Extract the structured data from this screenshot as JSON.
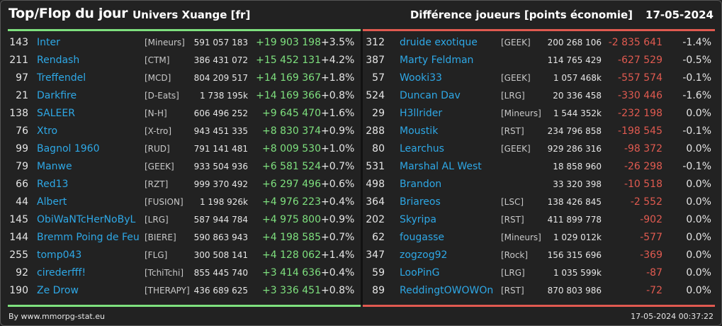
{
  "header": {
    "title": "Top/Flop du jour",
    "subtitle": "Univers Xuange [fr]",
    "metric_label": "Différence joueurs [points économie]",
    "date": "17-05-2024"
  },
  "top": [
    {
      "rank": "143",
      "name": "Inter",
      "guild": "[Mineurs]",
      "points": "591 057 183",
      "diff": "+19 903 198",
      "pct": "+3.5%"
    },
    {
      "rank": "211",
      "name": "Rendash",
      "guild": "[CTM]",
      "points": "386 431 072",
      "diff": "+15 452 131",
      "pct": "+4.2%"
    },
    {
      "rank": "97",
      "name": "Treffendel",
      "guild": "[MCD]",
      "points": "804 209 517",
      "diff": "+14 169 367",
      "pct": "+1.8%"
    },
    {
      "rank": "21",
      "name": "Darkfire",
      "guild": "[D-Eats]",
      "points": "1 738 195k",
      "diff": "+14 169 366",
      "pct": "+0.8%"
    },
    {
      "rank": "138",
      "name": "SALEER",
      "guild": "[N-H]",
      "points": "606 496 252",
      "diff": "+9 645 470",
      "pct": "+1.6%"
    },
    {
      "rank": "76",
      "name": "Xtro",
      "guild": "[X-tro]",
      "points": "943 451 335",
      "diff": "+8 830 374",
      "pct": "+0.9%"
    },
    {
      "rank": "99",
      "name": "Bagnol 1960",
      "guild": "[RUD]",
      "points": "791 141 481",
      "diff": "+8 009 530",
      "pct": "+1.0%"
    },
    {
      "rank": "79",
      "name": "Manwe",
      "guild": "[GEEK]",
      "points": "933 504 936",
      "diff": "+6 581 524",
      "pct": "+0.7%"
    },
    {
      "rank": "66",
      "name": "Red13",
      "guild": "[RZT]",
      "points": "999 370 492",
      "diff": "+6 297 496",
      "pct": "+0.6%"
    },
    {
      "rank": "44",
      "name": "Albert",
      "guild": "[FUSION]",
      "points": "1 198 926k",
      "diff": "+4 976 223",
      "pct": "+0.4%"
    },
    {
      "rank": "145",
      "name": "ObiWaNTcHerNoByL",
      "guild": "[LRG]",
      "points": "587 944 784",
      "diff": "+4 975 800",
      "pct": "+0.9%"
    },
    {
      "rank": "144",
      "name": "Bremm Poing de Feu",
      "guild": "[BIERE]",
      "points": "590 863 943",
      "diff": "+4 198 585",
      "pct": "+0.7%"
    },
    {
      "rank": "255",
      "name": "tomp043",
      "guild": "[FLG]",
      "points": "300 508 141",
      "diff": "+4 128 062",
      "pct": "+1.4%"
    },
    {
      "rank": "92",
      "name": "cirederfff!",
      "guild": "[TchiTchi]",
      "points": "855 445 740",
      "diff": "+3 414 636",
      "pct": "+0.4%"
    },
    {
      "rank": "190",
      "name": "Ze Drow",
      "guild": "[THERAPY]",
      "points": "436 689 625",
      "diff": "+3 336 451",
      "pct": "+0.8%"
    }
  ],
  "flop": [
    {
      "rank": "312",
      "name": "druide exotique",
      "guild": "[GEEK]",
      "points": "200 268 106",
      "diff": "-2 835 641",
      "pct": "-1.4%"
    },
    {
      "rank": "387",
      "name": "Marty Feldman",
      "guild": "",
      "points": "114 765 429",
      "diff": "-627 529",
      "pct": "-0.5%"
    },
    {
      "rank": "57",
      "name": "Wooki33",
      "guild": "[GEEK]",
      "points": "1 057 468k",
      "diff": "-557 574",
      "pct": "-0.1%"
    },
    {
      "rank": "524",
      "name": "Duncan Dav",
      "guild": "[LRG]",
      "points": "20 336 458",
      "diff": "-330 446",
      "pct": "-1.6%"
    },
    {
      "rank": "29",
      "name": "H3llrider",
      "guild": "[Mineurs]",
      "points": "1 544 352k",
      "diff": "-232 198",
      "pct": "0.0%"
    },
    {
      "rank": "288",
      "name": "Moustik",
      "guild": "[RST]",
      "points": "234 796 858",
      "diff": "-198 545",
      "pct": "-0.1%"
    },
    {
      "rank": "80",
      "name": "Learchus",
      "guild": "[GEEK]",
      "points": "929 286 316",
      "diff": "-98 372",
      "pct": "0.0%"
    },
    {
      "rank": "531",
      "name": "Marshal AL West",
      "guild": "",
      "points": "18 858 960",
      "diff": "-26 298",
      "pct": "-0.1%"
    },
    {
      "rank": "498",
      "name": "Brandon",
      "guild": "",
      "points": "33 320 398",
      "diff": "-10 518",
      "pct": "0.0%"
    },
    {
      "rank": "364",
      "name": "Briareos",
      "guild": "[LSC]",
      "points": "138 426 845",
      "diff": "-2 552",
      "pct": "0.0%"
    },
    {
      "rank": "202",
      "name": "Skyripa",
      "guild": "[RST]",
      "points": "411 899 778",
      "diff": "-902",
      "pct": "0.0%"
    },
    {
      "rank": "62",
      "name": "fougasse",
      "guild": "[Mineurs]",
      "points": "1 029 012k",
      "diff": "-577",
      "pct": "0.0%"
    },
    {
      "rank": "347",
      "name": "zogzog92",
      "guild": "[Rock]",
      "points": "156 315 696",
      "diff": "-369",
      "pct": "0.0%"
    },
    {
      "rank": "59",
      "name": "LooPinG",
      "guild": "[LRG]",
      "points": "1 035 599k",
      "diff": "-87",
      "pct": "0.0%"
    },
    {
      "rank": "89",
      "name": "ReddingtOWOWOn",
      "guild": "[RST]",
      "points": "870 803 986",
      "diff": "-72",
      "pct": "0.0%"
    }
  ],
  "footer": {
    "source": "By www.mmorpg-stat.eu",
    "timestamp": "17-05-2024 00:37:22"
  },
  "colors": {
    "positive": "#7ee07e",
    "negative": "#e05a50",
    "link": "#2ea8e6"
  }
}
